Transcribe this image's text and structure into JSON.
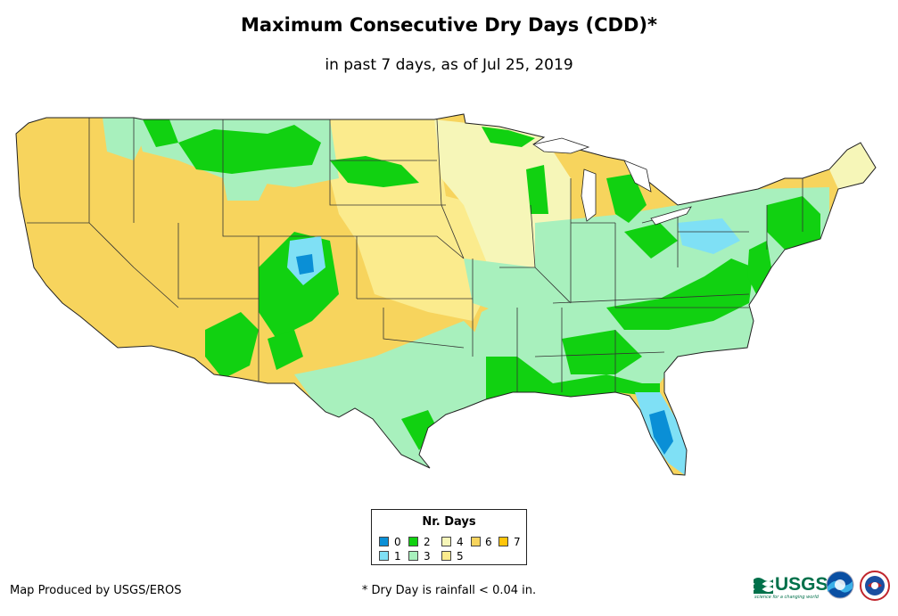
{
  "title": "Maximum Consecutive Dry Days (CDD)*",
  "subtitle": "in past 7 days, as of Jul 25, 2019",
  "legend": {
    "title": "Nr. Days",
    "items": [
      {
        "label": "0",
        "color": "#0a8fd6"
      },
      {
        "label": "1",
        "color": "#7fe0f5"
      },
      {
        "label": "2",
        "color": "#11d111"
      },
      {
        "label": "3",
        "color": "#a8f0bd"
      },
      {
        "label": "4",
        "color": "#f6f6b8"
      },
      {
        "label": "5",
        "color": "#fbeb8d"
      },
      {
        "label": "6",
        "color": "#f7d45d"
      },
      {
        "label": "7",
        "color": "#ffc50a"
      }
    ]
  },
  "credit": "Map Produced by USGS/EROS",
  "footnote": "* Dry Day is rainfall < 0.04 in.",
  "logos": {
    "usgs": "USGS",
    "usgs_tagline": "science for a changing world",
    "noaa_icon": "noaa-logo-icon",
    "nws_icon": "nws-logo-icon"
  }
}
